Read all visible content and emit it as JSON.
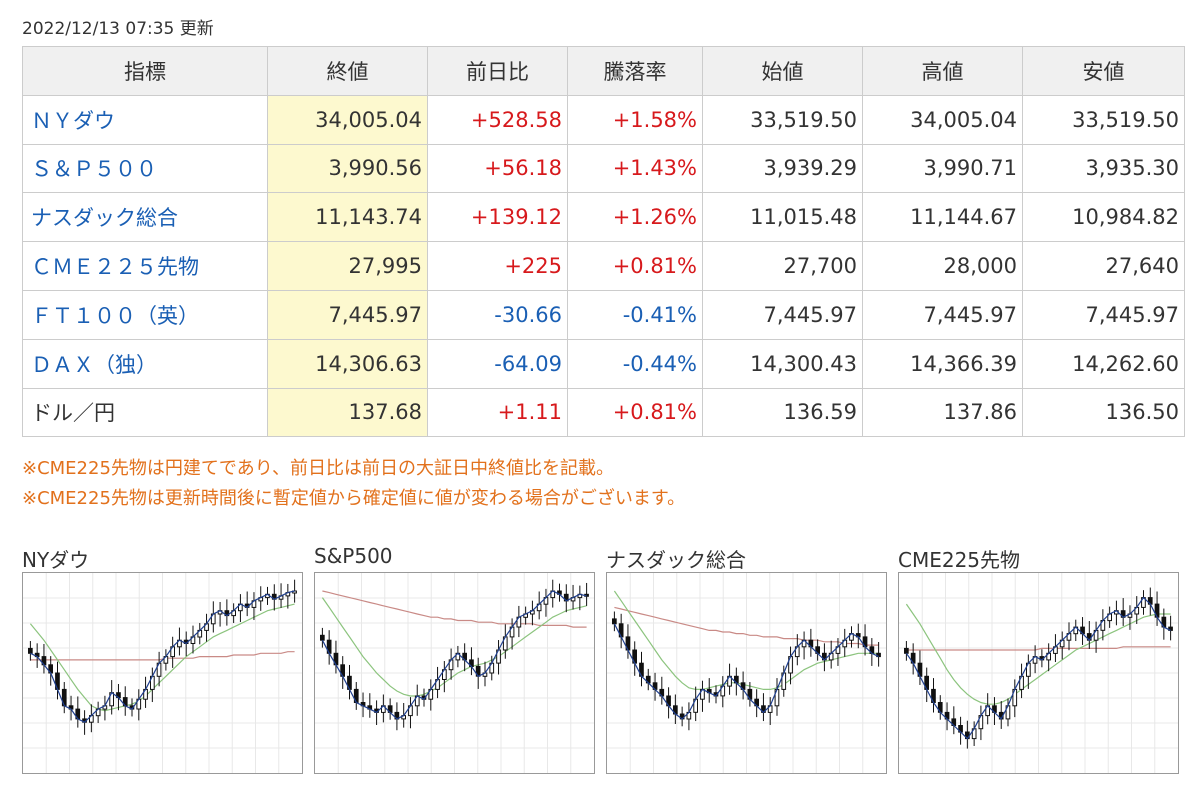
{
  "timestamp": "2022/12/13 07:35 更新",
  "table": {
    "headers": [
      "指標",
      "終値",
      "前日比",
      "騰落率",
      "始値",
      "高値",
      "安値"
    ],
    "rows": [
      {
        "name": "ＮＹダウ",
        "link": true,
        "close": "34,005.04",
        "change": "+528.58",
        "rate": "+1.58%",
        "dir": "up",
        "open": "33,519.50",
        "high": "34,005.04",
        "low": "33,519.50"
      },
      {
        "name": "Ｓ＆Ｐ５００",
        "link": true,
        "close": "3,990.56",
        "change": "+56.18",
        "rate": "+1.43%",
        "dir": "up",
        "open": "3,939.29",
        "high": "3,990.71",
        "low": "3,935.30"
      },
      {
        "name": "ナスダック総合",
        "link": true,
        "close": "11,143.74",
        "change": "+139.12",
        "rate": "+1.26%",
        "dir": "up",
        "open": "11,015.48",
        "high": "11,144.67",
        "low": "10,984.82"
      },
      {
        "name": "ＣＭＥ２２５先物",
        "link": true,
        "close": "27,995",
        "change": "+225",
        "rate": "+0.81%",
        "dir": "up",
        "open": "27,700",
        "high": "28,000",
        "low": "27,640"
      },
      {
        "name": "ＦＴ１００（英）",
        "link": true,
        "close": "7,445.97",
        "change": "-30.66",
        "rate": "-0.41%",
        "dir": "down",
        "open": "7,445.97",
        "high": "7,445.97",
        "low": "7,445.97"
      },
      {
        "name": "ＤＡＸ（独）",
        "link": true,
        "close": "14,306.63",
        "change": "-64.09",
        "rate": "-0.44%",
        "dir": "down",
        "open": "14,300.43",
        "high": "14,366.39",
        "low": "14,262.60"
      },
      {
        "name": "ドル／円",
        "link": false,
        "close": "137.68",
        "change": "+1.11",
        "rate": "+0.81%",
        "dir": "up",
        "open": "136.59",
        "high": "137.86",
        "low": "136.50"
      }
    ]
  },
  "notes": [
    "※CME225先物は円建てであり、前日比は前日の大証日中終値比を記載。",
    "※CME225先物は更新時間後に暫定値から確定値に値が変わる場合がございます。"
  ],
  "colors": {
    "up": "#d7191c",
    "down": "#1a5fb4",
    "closeBg": "#fdf9cf",
    "note": "#e2711c",
    "line": "#1f3f8f",
    "maShort": "#8cc47e",
    "maLong": "#c98a86",
    "candle": "#111111"
  },
  "charts": [
    {
      "title": "NYダウ",
      "chart_data": {
        "type": "candlestick",
        "close": [
          0.62,
          0.6,
          0.55,
          0.5,
          0.4,
          0.3,
          0.28,
          0.22,
          0.2,
          0.24,
          0.28,
          0.3,
          0.38,
          0.35,
          0.3,
          0.28,
          0.34,
          0.4,
          0.48,
          0.56,
          0.6,
          0.66,
          0.7,
          0.68,
          0.72,
          0.76,
          0.8,
          0.86,
          0.88,
          0.85,
          0.88,
          0.92,
          0.9,
          0.94,
          0.96,
          0.98,
          0.95,
          0.97,
          0.99,
          1.0
        ],
        "maShort": [
          0.8,
          0.75,
          0.7,
          0.64,
          0.58,
          0.52,
          0.46,
          0.4,
          0.35,
          0.3,
          0.28,
          0.27,
          0.28,
          0.29,
          0.3,
          0.31,
          0.33,
          0.36,
          0.4,
          0.44,
          0.48,
          0.52,
          0.56,
          0.6,
          0.63,
          0.66,
          0.69,
          0.72,
          0.74,
          0.76,
          0.78,
          0.8,
          0.82,
          0.84,
          0.86,
          0.88,
          0.89,
          0.9,
          0.91,
          0.92
        ],
        "maLong": [
          0.58,
          0.58,
          0.58,
          0.58,
          0.58,
          0.58,
          0.58,
          0.58,
          0.58,
          0.58,
          0.58,
          0.58,
          0.58,
          0.58,
          0.58,
          0.58,
          0.58,
          0.58,
          0.58,
          0.58,
          0.59,
          0.59,
          0.59,
          0.59,
          0.59,
          0.6,
          0.6,
          0.6,
          0.6,
          0.6,
          0.61,
          0.61,
          0.61,
          0.61,
          0.62,
          0.62,
          0.62,
          0.62,
          0.63,
          0.63
        ]
      }
    },
    {
      "title": "S&P500",
      "chart_data": {
        "type": "candlestick",
        "close": [
          0.7,
          0.62,
          0.55,
          0.48,
          0.4,
          0.32,
          0.3,
          0.28,
          0.26,
          0.3,
          0.26,
          0.22,
          0.24,
          0.3,
          0.36,
          0.34,
          0.4,
          0.46,
          0.52,
          0.58,
          0.62,
          0.58,
          0.54,
          0.48,
          0.5,
          0.56,
          0.64,
          0.72,
          0.78,
          0.84,
          0.86,
          0.88,
          0.92,
          0.96,
          1.0,
          0.98,
          0.94,
          0.96,
          0.98,
          0.97
        ],
        "maShort": [
          0.96,
          0.9,
          0.84,
          0.78,
          0.72,
          0.66,
          0.6,
          0.55,
          0.5,
          0.46,
          0.42,
          0.39,
          0.37,
          0.36,
          0.36,
          0.37,
          0.39,
          0.41,
          0.44,
          0.47,
          0.5,
          0.52,
          0.54,
          0.55,
          0.56,
          0.58,
          0.6,
          0.63,
          0.66,
          0.69,
          0.72,
          0.75,
          0.78,
          0.81,
          0.84,
          0.86,
          0.88,
          0.89,
          0.9,
          0.91
        ],
        "maLong": [
          1.0,
          0.99,
          0.98,
          0.97,
          0.96,
          0.95,
          0.94,
          0.93,
          0.92,
          0.91,
          0.9,
          0.89,
          0.88,
          0.87,
          0.86,
          0.85,
          0.84,
          0.84,
          0.83,
          0.83,
          0.82,
          0.82,
          0.82,
          0.81,
          0.81,
          0.81,
          0.8,
          0.8,
          0.8,
          0.8,
          0.8,
          0.8,
          0.79,
          0.79,
          0.79,
          0.79,
          0.79,
          0.78,
          0.78,
          0.78
        ]
      }
    },
    {
      "title": "ナスダック総合",
      "chart_data": {
        "type": "candlestick",
        "close": [
          0.8,
          0.72,
          0.64,
          0.56,
          0.48,
          0.44,
          0.4,
          0.36,
          0.3,
          0.25,
          0.22,
          0.26,
          0.34,
          0.4,
          0.38,
          0.36,
          0.42,
          0.48,
          0.44,
          0.4,
          0.34,
          0.3,
          0.26,
          0.3,
          0.4,
          0.5,
          0.6,
          0.66,
          0.7,
          0.66,
          0.62,
          0.58,
          0.62,
          0.66,
          0.7,
          0.74,
          0.72,
          0.66,
          0.62,
          0.6
        ],
        "maShort": [
          1.0,
          0.94,
          0.88,
          0.82,
          0.76,
          0.7,
          0.64,
          0.58,
          0.53,
          0.48,
          0.44,
          0.41,
          0.4,
          0.4,
          0.41,
          0.42,
          0.43,
          0.44,
          0.44,
          0.43,
          0.42,
          0.41,
          0.4,
          0.4,
          0.41,
          0.43,
          0.46,
          0.49,
          0.52,
          0.54,
          0.56,
          0.57,
          0.58,
          0.59,
          0.6,
          0.61,
          0.62,
          0.62,
          0.62,
          0.62
        ],
        "maLong": [
          0.9,
          0.89,
          0.88,
          0.87,
          0.86,
          0.85,
          0.84,
          0.83,
          0.82,
          0.81,
          0.8,
          0.79,
          0.78,
          0.77,
          0.76,
          0.76,
          0.75,
          0.75,
          0.74,
          0.74,
          0.73,
          0.73,
          0.72,
          0.72,
          0.72,
          0.71,
          0.71,
          0.71,
          0.7,
          0.7,
          0.7,
          0.69,
          0.69,
          0.69,
          0.68,
          0.68,
          0.68,
          0.67,
          0.67,
          0.67
        ]
      }
    },
    {
      "title": "CME225先物",
      "chart_data": {
        "type": "candlestick",
        "close": [
          0.62,
          0.56,
          0.48,
          0.4,
          0.32,
          0.26,
          0.22,
          0.18,
          0.14,
          0.1,
          0.16,
          0.24,
          0.3,
          0.26,
          0.22,
          0.3,
          0.4,
          0.48,
          0.56,
          0.6,
          0.58,
          0.62,
          0.66,
          0.7,
          0.74,
          0.78,
          0.74,
          0.7,
          0.76,
          0.82,
          0.86,
          0.88,
          0.84,
          0.86,
          0.9,
          0.96,
          0.92,
          0.84,
          0.78,
          0.76
        ],
        "maShort": [
          0.92,
          0.86,
          0.8,
          0.73,
          0.66,
          0.59,
          0.52,
          0.46,
          0.41,
          0.37,
          0.34,
          0.32,
          0.31,
          0.31,
          0.32,
          0.34,
          0.37,
          0.4,
          0.43,
          0.46,
          0.49,
          0.52,
          0.55,
          0.58,
          0.61,
          0.64,
          0.66,
          0.68,
          0.7,
          0.72,
          0.74,
          0.76,
          0.78,
          0.8,
          0.82,
          0.84,
          0.85,
          0.86,
          0.86,
          0.86
        ],
        "maLong": [
          0.64,
          0.64,
          0.64,
          0.64,
          0.64,
          0.64,
          0.64,
          0.64,
          0.64,
          0.64,
          0.64,
          0.64,
          0.64,
          0.64,
          0.64,
          0.64,
          0.64,
          0.64,
          0.64,
          0.64,
          0.65,
          0.65,
          0.65,
          0.65,
          0.65,
          0.65,
          0.65,
          0.65,
          0.65,
          0.65,
          0.65,
          0.65,
          0.66,
          0.66,
          0.66,
          0.66,
          0.66,
          0.66,
          0.66,
          0.66
        ]
      }
    }
  ]
}
